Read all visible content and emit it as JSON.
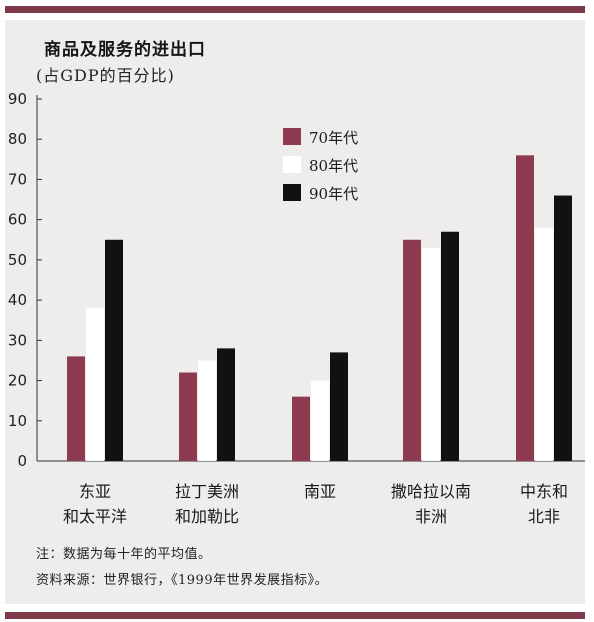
{
  "chart_data": {
    "type": "bar",
    "title": "商品及服务的进出口",
    "subtitle": "(占GDP的百分比)",
    "categories": [
      [
        "东亚",
        "和太平洋"
      ],
      [
        "拉丁美洲",
        "和加勒比"
      ],
      [
        "南亚"
      ],
      [
        "撒哈拉以南",
        "非洲"
      ],
      [
        "中东和",
        "北非"
      ]
    ],
    "series": [
      {
        "name": "70年代",
        "color": "#8e3a4f",
        "values": [
          26,
          22,
          16,
          55,
          76
        ]
      },
      {
        "name": "80年代",
        "color": "#ffffff",
        "values": [
          38,
          25,
          20,
          53,
          58
        ]
      },
      {
        "name": "90年代",
        "color": "#111111",
        "values": [
          55,
          28,
          27,
          57,
          66
        ]
      }
    ],
    "ylim": [
      0,
      90
    ],
    "yticks": [
      0,
      10,
      20,
      30,
      40,
      50,
      60,
      70,
      80,
      90
    ],
    "legend_position": "upper-middle",
    "grid": false
  },
  "notes": {
    "note": "注：数据为每十年的平均值。",
    "source": "资料来源：世界银行，《1999年世界发展指标》。"
  }
}
